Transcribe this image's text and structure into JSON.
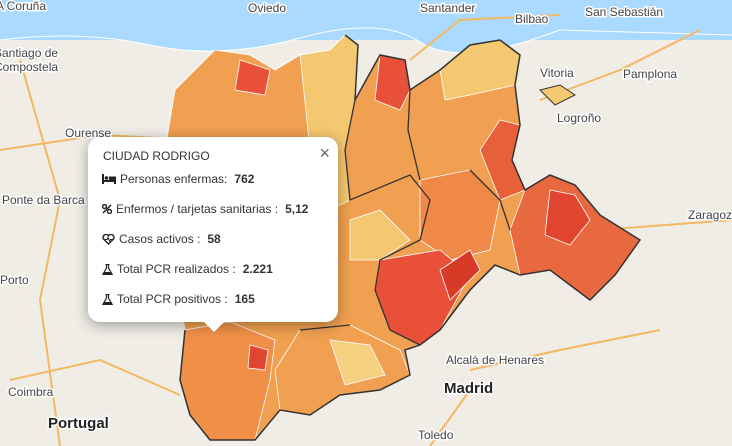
{
  "map": {
    "labels": [
      "A Coruña",
      "Oviedo",
      "Santander",
      "Bilbao",
      "San Sebastián",
      "Santiago de",
      "Compostela",
      "Vitoria",
      "Pamplona",
      "Logroño",
      "Ourense",
      "Zaragoza",
      "Ponte da Barca",
      "Porto",
      "Portugal",
      "Coimbra",
      "Alcalá de Henares",
      "Madrid",
      "Toledo"
    ]
  },
  "popup": {
    "title": "CIUDAD RODRIGO",
    "rows": [
      {
        "label": "Personas enfermas:",
        "value": "762"
      },
      {
        "label": "Enfermos / tarjetas sanitarias :",
        "value": "5,12"
      },
      {
        "label": "Casos activos :",
        "value": "58"
      },
      {
        "label": "Total PCR realizados :",
        "value": "2.221"
      },
      {
        "label": "Total PCR positivos :",
        "value": "165"
      }
    ]
  }
}
